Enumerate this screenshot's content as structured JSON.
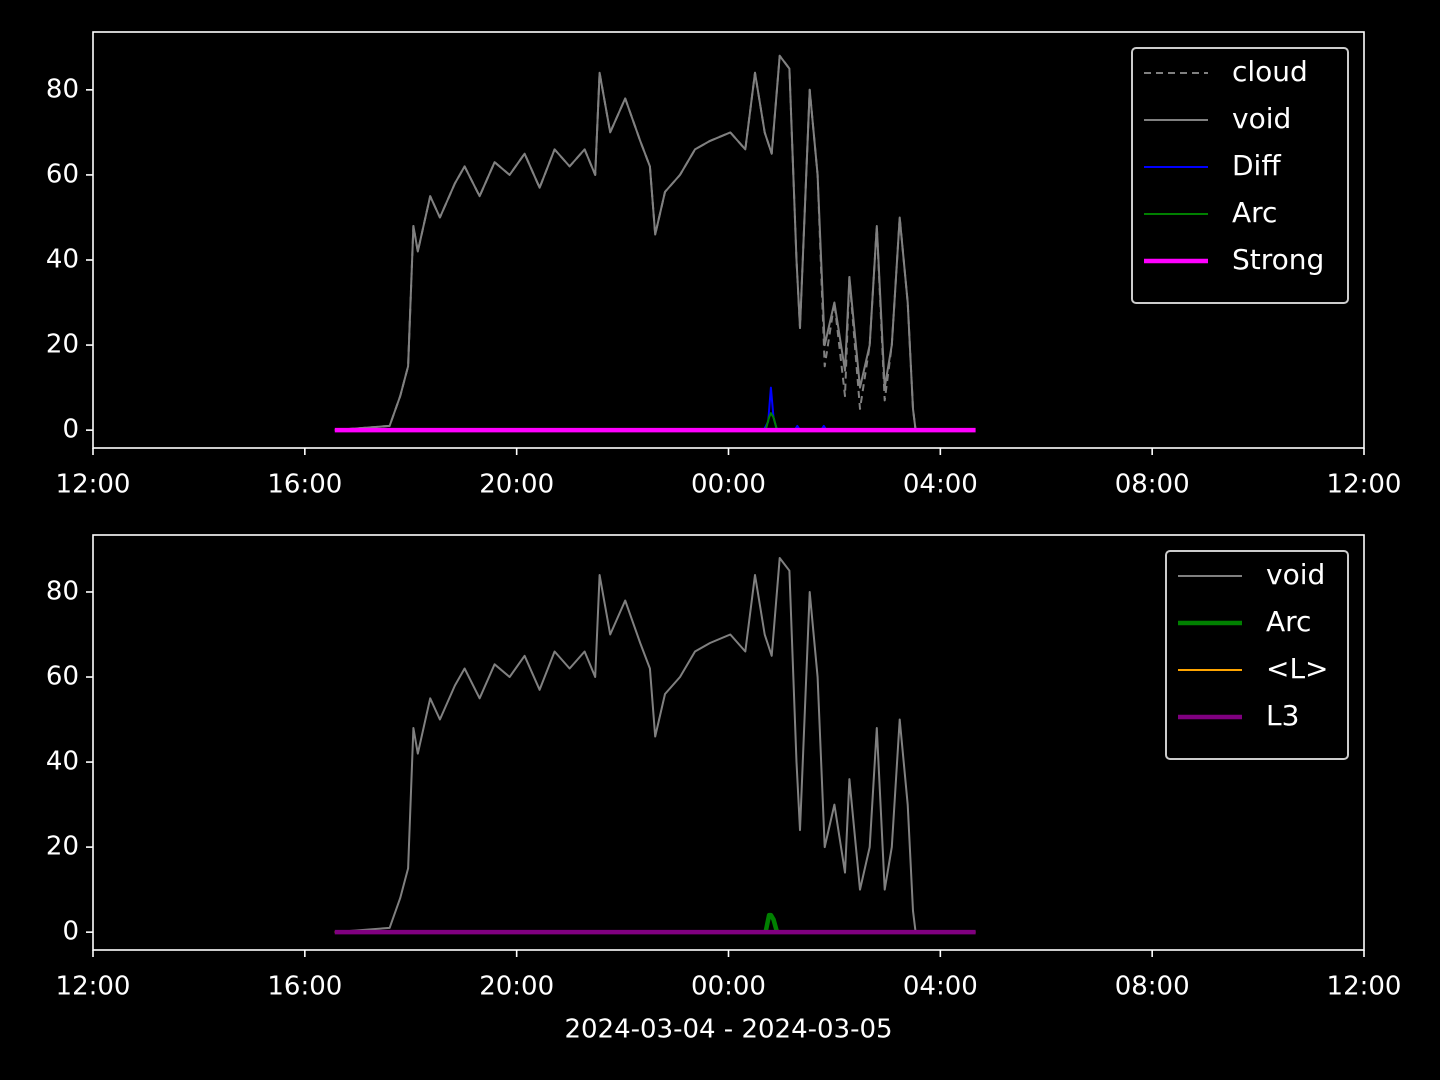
{
  "chart_data": [
    {
      "type": "line",
      "legend": "upper right",
      "xlim": [
        "2024-03-04 12:00",
        "2024-03-05 12:00"
      ],
      "xticks": [
        {
          "value": "2024-03-04 12:00",
          "label": "12:00"
        },
        {
          "value": "2024-03-04 16:00",
          "label": "16:00"
        },
        {
          "value": "2024-03-04 20:00",
          "label": "20:00"
        },
        {
          "value": "2024-03-05 00:00",
          "label": "00:00"
        },
        {
          "value": "2024-03-05 04:00",
          "label": "04:00"
        },
        {
          "value": "2024-03-05 08:00",
          "label": "08:00"
        },
        {
          "value": "2024-03-05 12:00",
          "label": "12:00"
        }
      ],
      "ylim": [
        -4.2,
        93.6
      ],
      "yticks": [
        0,
        20,
        40,
        60,
        80
      ],
      "series": [
        {
          "name": "cloud",
          "color": "#808080",
          "style": "dashed",
          "x": [
            "2024-03-04 16:34",
            "2024-03-04 17:36",
            "2024-03-04 17:48",
            "2024-03-04 17:57",
            "2024-03-04 18:03",
            "2024-03-04 18:08",
            "2024-03-04 18:22",
            "2024-03-04 18:33",
            "2024-03-04 18:50",
            "2024-03-04 19:01",
            "2024-03-04 19:18",
            "2024-03-04 19:35",
            "2024-03-04 19:52",
            "2024-03-04 20:09",
            "2024-03-04 20:26",
            "2024-03-04 20:43",
            "2024-03-04 21:00",
            "2024-03-04 21:17",
            "2024-03-04 21:29",
            "2024-03-04 21:34",
            "2024-03-04 21:46",
            "2024-03-04 22:03",
            "2024-03-04 22:20",
            "2024-03-04 22:31",
            "2024-03-04 22:37",
            "2024-03-04 22:48",
            "2024-03-04 23:05",
            "2024-03-04 23:22",
            "2024-03-04 23:39",
            "2024-03-05 00:02",
            "2024-03-05 00:19",
            "2024-03-05 00:30",
            "2024-03-05 00:41",
            "2024-03-05 00:49",
            "2024-03-05 00:58",
            "2024-03-05 01:09",
            "2024-03-05 01:17",
            "2024-03-05 01:21",
            "2024-03-05 01:32",
            "2024-03-05 01:41",
            "2024-03-05 01:49",
            "2024-03-05 02:00",
            "2024-03-05 02:12",
            "2024-03-05 02:17",
            "2024-03-05 02:29",
            "2024-03-05 02:40",
            "2024-03-05 02:48",
            "2024-03-05 02:57",
            "2024-03-05 03:05",
            "2024-03-05 03:14",
            "2024-03-05 03:23",
            "2024-03-05 03:29",
            "2024-03-05 03:32"
          ],
          "values": [
            0,
            1,
            8,
            15,
            48,
            42,
            55,
            50,
            58,
            62,
            55,
            63,
            60,
            65,
            57,
            66,
            62,
            66,
            60,
            84,
            70,
            78,
            68,
            62,
            46,
            56,
            60,
            66,
            68,
            70,
            66,
            84,
            70,
            65,
            88,
            85,
            40,
            24,
            80,
            60,
            15,
            30,
            8,
            36,
            5,
            20,
            48,
            7,
            20,
            50,
            30,
            5,
            0
          ]
        },
        {
          "name": "void",
          "color": "#808080",
          "style": "thin",
          "x": [
            "2024-03-04 16:34",
            "2024-03-04 17:36",
            "2024-03-04 17:48",
            "2024-03-04 17:57",
            "2024-03-04 18:03",
            "2024-03-04 18:08",
            "2024-03-04 18:22",
            "2024-03-04 18:33",
            "2024-03-04 18:50",
            "2024-03-04 19:01",
            "2024-03-04 19:18",
            "2024-03-04 19:35",
            "2024-03-04 19:52",
            "2024-03-04 20:09",
            "2024-03-04 20:26",
            "2024-03-04 20:43",
            "2024-03-04 21:00",
            "2024-03-04 21:17",
            "2024-03-04 21:29",
            "2024-03-04 21:34",
            "2024-03-04 21:46",
            "2024-03-04 22:03",
            "2024-03-04 22:20",
            "2024-03-04 22:31",
            "2024-03-04 22:37",
            "2024-03-04 22:48",
            "2024-03-04 23:05",
            "2024-03-04 23:22",
            "2024-03-04 23:39",
            "2024-03-05 00:02",
            "2024-03-05 00:19",
            "2024-03-05 00:30",
            "2024-03-05 00:41",
            "2024-03-05 00:49",
            "2024-03-05 00:58",
            "2024-03-05 01:09",
            "2024-03-05 01:17",
            "2024-03-05 01:21",
            "2024-03-05 01:32",
            "2024-03-05 01:41",
            "2024-03-05 01:49",
            "2024-03-05 02:00",
            "2024-03-05 02:12",
            "2024-03-05 02:17",
            "2024-03-05 02:29",
            "2024-03-05 02:40",
            "2024-03-05 02:48",
            "2024-03-05 02:57",
            "2024-03-05 03:05",
            "2024-03-05 03:14",
            "2024-03-05 03:23",
            "2024-03-05 03:29",
            "2024-03-05 03:32"
          ],
          "values": [
            0,
            1,
            8,
            15,
            48,
            42,
            55,
            50,
            58,
            62,
            55,
            63,
            60,
            65,
            57,
            66,
            62,
            66,
            60,
            84,
            70,
            78,
            68,
            62,
            46,
            56,
            60,
            66,
            68,
            70,
            66,
            84,
            70,
            65,
            88,
            85,
            40,
            24,
            80,
            60,
            20,
            30,
            14,
            36,
            10,
            20,
            48,
            10,
            20,
            50,
            30,
            5,
            0
          ]
        },
        {
          "name": "Diff",
          "color": "#0000ff",
          "style": "thin",
          "x": [
            "2024-03-05 00:40",
            "2024-03-05 00:45",
            "2024-03-05 00:48",
            "2024-03-05 00:51",
            "2024-03-05 00:55",
            "2024-03-05 01:15",
            "2024-03-05 01:18",
            "2024-03-05 01:21",
            "2024-03-05 01:45",
            "2024-03-05 01:48",
            "2024-03-05 01:51"
          ],
          "values": [
            0,
            2,
            10,
            3,
            0,
            0,
            1,
            0,
            0,
            1,
            0
          ]
        },
        {
          "name": "Arc",
          "color": "#008000",
          "style": "thin",
          "x": [
            "2024-03-05 00:42",
            "2024-03-05 00:46",
            "2024-03-05 00:48",
            "2024-03-05 00:51",
            "2024-03-05 00:55"
          ],
          "values": [
            0,
            3,
            4,
            3,
            0
          ]
        },
        {
          "name": "Strong",
          "color": "#ff00ff",
          "style": "thick",
          "x": [
            "2024-03-04 16:34",
            "2024-03-05 04:40"
          ],
          "values": [
            0,
            0
          ]
        }
      ]
    },
    {
      "type": "line",
      "legend": "upper right",
      "xlabel": "2024-03-04 - 2024-03-05",
      "xlim": [
        "2024-03-04 12:00",
        "2024-03-05 12:00"
      ],
      "xticks": [
        {
          "value": "2024-03-04 12:00",
          "label": "12:00"
        },
        {
          "value": "2024-03-04 16:00",
          "label": "16:00"
        },
        {
          "value": "2024-03-04 20:00",
          "label": "20:00"
        },
        {
          "value": "2024-03-05 00:00",
          "label": "00:00"
        },
        {
          "value": "2024-03-05 04:00",
          "label": "04:00"
        },
        {
          "value": "2024-03-05 08:00",
          "label": "08:00"
        },
        {
          "value": "2024-03-05 12:00",
          "label": "12:00"
        }
      ],
      "ylim": [
        -4.2,
        93.4
      ],
      "yticks": [
        0,
        20,
        40,
        60,
        80
      ],
      "series": [
        {
          "name": "void",
          "color": "#808080",
          "style": "thin",
          "x": [
            "2024-03-04 16:34",
            "2024-03-04 17:36",
            "2024-03-04 17:48",
            "2024-03-04 17:57",
            "2024-03-04 18:03",
            "2024-03-04 18:08",
            "2024-03-04 18:22",
            "2024-03-04 18:33",
            "2024-03-04 18:50",
            "2024-03-04 19:01",
            "2024-03-04 19:18",
            "2024-03-04 19:35",
            "2024-03-04 19:52",
            "2024-03-04 20:09",
            "2024-03-04 20:26",
            "2024-03-04 20:43",
            "2024-03-04 21:00",
            "2024-03-04 21:17",
            "2024-03-04 21:29",
            "2024-03-04 21:34",
            "2024-03-04 21:46",
            "2024-03-04 22:03",
            "2024-03-04 22:20",
            "2024-03-04 22:31",
            "2024-03-04 22:37",
            "2024-03-04 22:48",
            "2024-03-04 23:05",
            "2024-03-04 23:22",
            "2024-03-04 23:39",
            "2024-03-05 00:02",
            "2024-03-05 00:19",
            "2024-03-05 00:30",
            "2024-03-05 00:41",
            "2024-03-05 00:49",
            "2024-03-05 00:58",
            "2024-03-05 01:09",
            "2024-03-05 01:17",
            "2024-03-05 01:21",
            "2024-03-05 01:32",
            "2024-03-05 01:41",
            "2024-03-05 01:49",
            "2024-03-05 02:00",
            "2024-03-05 02:12",
            "2024-03-05 02:17",
            "2024-03-05 02:29",
            "2024-03-05 02:40",
            "2024-03-05 02:48",
            "2024-03-05 02:57",
            "2024-03-05 03:05",
            "2024-03-05 03:14",
            "2024-03-05 03:23",
            "2024-03-05 03:29",
            "2024-03-05 03:32"
          ],
          "values": [
            0,
            1,
            8,
            15,
            48,
            42,
            55,
            50,
            58,
            62,
            55,
            63,
            60,
            65,
            57,
            66,
            62,
            66,
            60,
            84,
            70,
            78,
            68,
            62,
            46,
            56,
            60,
            66,
            68,
            70,
            66,
            84,
            70,
            65,
            88,
            85,
            40,
            24,
            80,
            60,
            20,
            30,
            14,
            36,
            10,
            20,
            48,
            10,
            20,
            50,
            30,
            5,
            0
          ]
        },
        {
          "name": "Arc",
          "color": "#008000",
          "style": "thick",
          "x": [
            "2024-03-05 00:42",
            "2024-03-05 00:46",
            "2024-03-05 00:48",
            "2024-03-05 00:51",
            "2024-03-05 00:55"
          ],
          "values": [
            0,
            4,
            4,
            3,
            0
          ]
        },
        {
          "name": "<L>",
          "color": "#ffa500",
          "style": "thin",
          "x": [
            "2024-03-04 16:34",
            "2024-03-05 04:40"
          ],
          "values": [
            0,
            0
          ]
        },
        {
          "name": "L3",
          "color": "#800080",
          "style": "thick",
          "x": [
            "2024-03-04 16:34",
            "2024-03-05 04:40"
          ],
          "values": [
            0,
            0
          ]
        }
      ]
    }
  ]
}
